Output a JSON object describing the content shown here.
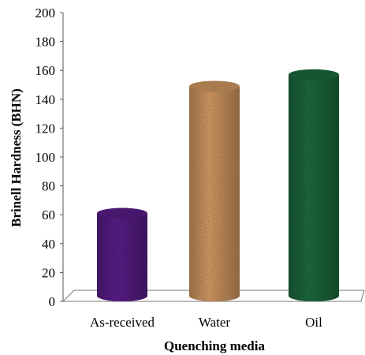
{
  "chart_data": {
    "type": "bar",
    "style": "3d-cylinder",
    "categories": [
      "As-received",
      "Water",
      "Oil"
    ],
    "values": [
      62,
      150,
      158
    ],
    "xlabel": "Quenching media",
    "ylabel": "Brinell Hardness (BHN)",
    "ylim": [
      0,
      200
    ],
    "yticks": [
      0,
      20,
      40,
      60,
      80,
      100,
      120,
      140,
      160,
      180,
      200
    ],
    "grid": false,
    "legend": "none",
    "colors": [
      "#5a1e8a",
      "#d49a63",
      "#1d6b3e"
    ],
    "texture_names": [
      "purple-granite",
      "cork",
      "green-marble"
    ]
  }
}
